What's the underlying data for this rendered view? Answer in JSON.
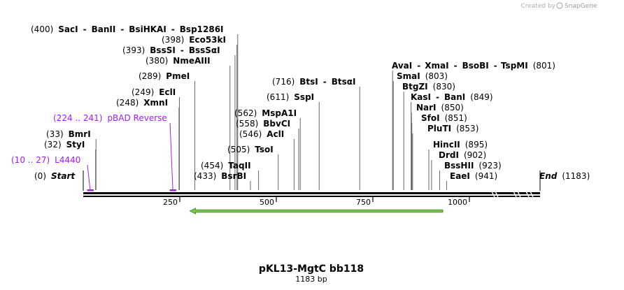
{
  "app": {
    "credit_prefix": "Created by",
    "credit_brand": "SnapGene"
  },
  "map": {
    "name": "pKL13-MgtC bb118",
    "length_label": "1183 bp",
    "length": 1183,
    "tick_labels": [
      "250",
      "500",
      "750",
      "1000"
    ],
    "tick_positions": [
      250,
      500,
      750,
      1000
    ]
  },
  "rows": [
    {
      "id": "sac",
      "items": [
        {
          "t": "(400)",
          "s": "n"
        },
        {
          "t": "SacI",
          "s": "b",
          "p": 400
        },
        {
          "t": "-",
          "s": "b"
        },
        {
          "t": "BanII",
          "s": "b",
          "p": 400
        },
        {
          "t": "-",
          "s": "b"
        },
        {
          "t": "BsiHKAI",
          "s": "b",
          "p": 400
        },
        {
          "t": "-",
          "s": "b"
        },
        {
          "t": "Bsp1286I",
          "s": "b",
          "p": 400
        }
      ]
    },
    {
      "id": "eco",
      "items": [
        {
          "t": "(398)",
          "s": "n"
        },
        {
          "t": "Eco53kI",
          "s": "b",
          "p": 398
        }
      ]
    },
    {
      "id": "bss",
      "items": [
        {
          "t": "(393)",
          "s": "n"
        },
        {
          "t": "BssSI",
          "s": "b",
          "p": 393
        },
        {
          "t": "-",
          "s": "b"
        },
        {
          "t": "BssSαI",
          "s": "b",
          "p": 393
        }
      ]
    },
    {
      "id": "nme",
      "items": [
        {
          "t": "(380)",
          "s": "n"
        },
        {
          "t": "NmeAIII",
          "s": "b",
          "p": 380
        }
      ]
    },
    {
      "id": "pme",
      "items": [
        {
          "t": "(289)",
          "s": "n"
        },
        {
          "t": "PmeI",
          "s": "b",
          "p": 289
        }
      ]
    },
    {
      "id": "btsi",
      "items": [
        {
          "t": "(716)",
          "s": "n"
        },
        {
          "t": "BtsI",
          "s": "b",
          "p": 716
        },
        {
          "t": "-",
          "s": "b"
        },
        {
          "t": "BtsαI",
          "s": "b",
          "p": 716
        }
      ]
    },
    {
      "id": "ava",
      "items": [
        {
          "t": "AvaI",
          "s": "b",
          "p": 801
        },
        {
          "t": "-",
          "s": "b"
        },
        {
          "t": "XmaI",
          "s": "b",
          "p": 801
        },
        {
          "t": "-",
          "s": "b"
        },
        {
          "t": "BsoBI",
          "s": "b",
          "p": 801
        },
        {
          "t": "-",
          "s": "b"
        },
        {
          "t": "TspMI",
          "s": "b",
          "p": 801
        },
        {
          "t": "(801)",
          "s": "n"
        }
      ]
    },
    {
      "id": "sma",
      "items": [
        {
          "t": "SmaI",
          "s": "b",
          "p": 803
        },
        {
          "t": "(803)",
          "s": "n"
        }
      ]
    },
    {
      "id": "btg",
      "items": [
        {
          "t": "BtgZI",
          "s": "b",
          "p": 830
        },
        {
          "t": "(830)",
          "s": "n"
        }
      ]
    },
    {
      "id": "kas",
      "items": [
        {
          "t": "KasI",
          "s": "b",
          "p": 849
        },
        {
          "t": "-",
          "s": "b"
        },
        {
          "t": "BanI",
          "s": "b",
          "p": 849
        },
        {
          "t": "(849)",
          "s": "n"
        }
      ]
    },
    {
      "id": "nar",
      "items": [
        {
          "t": "NarI",
          "s": "b",
          "p": 850
        },
        {
          "t": "(850)",
          "s": "n"
        }
      ]
    },
    {
      "id": "sfo",
      "items": [
        {
          "t": "SfoI",
          "s": "b",
          "p": 851
        },
        {
          "t": "(851)",
          "s": "n"
        }
      ]
    },
    {
      "id": "plu",
      "items": [
        {
          "t": "PluTI",
          "s": "b",
          "p": 853
        },
        {
          "t": "(853)",
          "s": "n"
        }
      ]
    },
    {
      "id": "ecli",
      "items": [
        {
          "t": "(249)",
          "s": "n"
        },
        {
          "t": "EclI",
          "s": "b",
          "p": 249
        }
      ]
    },
    {
      "id": "xmn",
      "items": [
        {
          "t": "(248)",
          "s": "n"
        },
        {
          "t": "XmnI",
          "s": "b",
          "p": 248
        }
      ]
    },
    {
      "id": "mspa",
      "items": [
        {
          "t": "(562)",
          "s": "n"
        },
        {
          "t": "MspA1I",
          "s": "b",
          "p": 562
        }
      ]
    },
    {
      "id": "bbv",
      "items": [
        {
          "t": "(558)",
          "s": "n"
        },
        {
          "t": "BbvCI",
          "s": "b",
          "p": 558
        }
      ]
    },
    {
      "id": "acl",
      "items": [
        {
          "t": "(546)",
          "s": "n"
        },
        {
          "t": "AclI",
          "s": "b",
          "p": 546
        }
      ]
    },
    {
      "id": "tso",
      "items": [
        {
          "t": "(505)",
          "s": "n"
        },
        {
          "t": "TsoI",
          "s": "b",
          "p": 505
        }
      ]
    },
    {
      "id": "ssp",
      "items": [
        {
          "t": "(611)",
          "s": "n"
        },
        {
          "t": "SspI",
          "s": "b",
          "p": 611
        }
      ]
    },
    {
      "id": "pbad",
      "items": [
        {
          "t": "(224 .. 241)",
          "s": "p"
        },
        {
          "t": "pBAD Reverse",
          "s": "p",
          "p": 232
        }
      ]
    },
    {
      "id": "bmr",
      "items": [
        {
          "t": "(33)",
          "s": "n"
        },
        {
          "t": "BmrI",
          "s": "b",
          "p": 33
        }
      ]
    },
    {
      "id": "sty",
      "items": [
        {
          "t": "(32)",
          "s": "n"
        },
        {
          "t": "StyI",
          "s": "b",
          "p": 32
        }
      ]
    },
    {
      "id": "l4440",
      "items": [
        {
          "t": "(10 .. 27)",
          "s": "p"
        },
        {
          "t": "L4440",
          "s": "p",
          "p": 18
        }
      ]
    },
    {
      "id": "hinc",
      "items": [
        {
          "t": "HincII",
          "s": "b",
          "p": 895
        },
        {
          "t": "(895)",
          "s": "n"
        }
      ]
    },
    {
      "id": "drd",
      "items": [
        {
          "t": "DrdI",
          "s": "b",
          "p": 902
        },
        {
          "t": "(902)",
          "s": "n"
        }
      ]
    },
    {
      "id": "bssh",
      "items": [
        {
          "t": "BssHII",
          "s": "b",
          "p": 923
        },
        {
          "t": "(923)",
          "s": "n"
        }
      ]
    },
    {
      "id": "taq",
      "items": [
        {
          "t": "(454)",
          "s": "n"
        },
        {
          "t": "TaqII",
          "s": "b",
          "p": 454
        }
      ]
    },
    {
      "id": "bsrb",
      "items": [
        {
          "t": "(433)",
          "s": "n"
        },
        {
          "t": "BsrBI",
          "s": "b",
          "p": 433
        }
      ]
    },
    {
      "id": "eae",
      "items": [
        {
          "t": "EaeI",
          "s": "b",
          "p": 941
        },
        {
          "t": "(941)",
          "s": "n"
        }
      ]
    },
    {
      "id": "start",
      "items": [
        {
          "t": "(0)",
          "s": "n"
        },
        {
          "t": "Start",
          "s": "i",
          "p": 0
        }
      ]
    },
    {
      "id": "end",
      "items": [
        {
          "t": "End",
          "s": "i",
          "p": 1183
        },
        {
          "t": "(1183)",
          "s": "n"
        }
      ]
    }
  ],
  "features": [
    {
      "name": "L4440",
      "start": 10,
      "end": 27,
      "color": "#a020e0"
    },
    {
      "name": "pBAD Reverse",
      "start": 224,
      "end": 241,
      "color": "#a020e0"
    }
  ],
  "orf": {
    "start": 300,
    "end": 940,
    "direction": "reverse",
    "color": "#7ec850",
    "edge": "#4a9020"
  },
  "colors": {
    "backbone": "#000000",
    "lines": "#666666",
    "primer": "#a020e0"
  }
}
